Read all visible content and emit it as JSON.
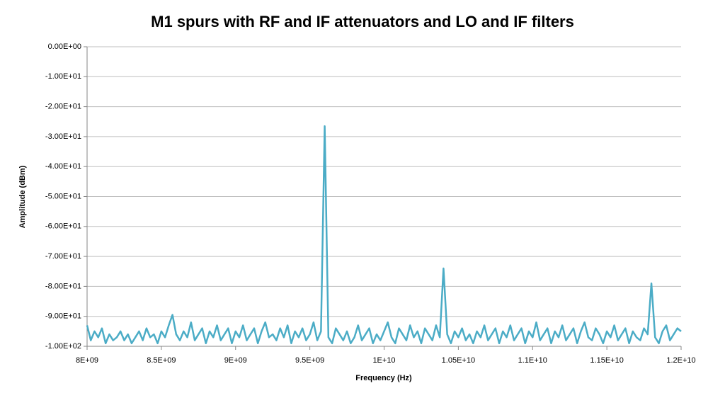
{
  "chart_data": {
    "type": "line",
    "title": "M1 spurs with RF and IF attenuators and LO and IF filters",
    "x_label": "Frequency (Hz)",
    "y_label": "Amplitude (dBm)",
    "grid": true,
    "xlim": [
      8000000000.0,
      12000000000.0
    ],
    "ylim": [
      -100,
      0
    ],
    "xticks": [
      {
        "value": 8000000000.0,
        "label": "8E+09"
      },
      {
        "value": 8500000000.0,
        "label": "8.5E+09"
      },
      {
        "value": 9000000000.0,
        "label": "9E+09"
      },
      {
        "value": 9500000000.0,
        "label": "9.5E+09"
      },
      {
        "value": 10000000000.0,
        "label": "1E+10"
      },
      {
        "value": 10500000000.0,
        "label": "1.05E+10"
      },
      {
        "value": 11000000000.0,
        "label": "1.1E+10"
      },
      {
        "value": 11500000000.0,
        "label": "1.15E+10"
      },
      {
        "value": 12000000000.0,
        "label": "1.2E+10"
      }
    ],
    "yticks": [
      {
        "value": 0,
        "label": "0.00E+00"
      },
      {
        "value": -10,
        "label": "-1.00E+01"
      },
      {
        "value": -20,
        "label": "-2.00E+01"
      },
      {
        "value": -30,
        "label": "-3.00E+01"
      },
      {
        "value": -40,
        "label": "-4.00E+01"
      },
      {
        "value": -50,
        "label": "-5.00E+01"
      },
      {
        "value": -60,
        "label": "-6.00E+01"
      },
      {
        "value": -70,
        "label": "-7.00E+01"
      },
      {
        "value": -80,
        "label": "-8.00E+01"
      },
      {
        "value": -90,
        "label": "-9.00E+01"
      },
      {
        "value": -100,
        "label": "-1.00E+02"
      }
    ],
    "x": [
      8000000000.0,
      8025000000.0,
      8050000000.0,
      8075000000.0,
      8100000000.0,
      8125000000.0,
      8150000000.0,
      8175000000.0,
      8200000000.0,
      8225000000.0,
      8250000000.0,
      8275000000.0,
      8300000000.0,
      8325000000.0,
      8350000000.0,
      8375000000.0,
      8400000000.0,
      8425000000.0,
      8450000000.0,
      8475000000.0,
      8500000000.0,
      8525000000.0,
      8550000000.0,
      8575000000.0,
      8600000000.0,
      8625000000.0,
      8650000000.0,
      8675000000.0,
      8700000000.0,
      8725000000.0,
      8750000000.0,
      8775000000.0,
      8800000000.0,
      8825000000.0,
      8850000000.0,
      8875000000.0,
      8900000000.0,
      8925000000.0,
      8950000000.0,
      8975000000.0,
      9000000000.0,
      9025000000.0,
      9050000000.0,
      9075000000.0,
      9100000000.0,
      9125000000.0,
      9150000000.0,
      9175000000.0,
      9200000000.0,
      9225000000.0,
      9250000000.0,
      9275000000.0,
      9300000000.0,
      9325000000.0,
      9350000000.0,
      9375000000.0,
      9400000000.0,
      9425000000.0,
      9450000000.0,
      9475000000.0,
      9500000000.0,
      9525000000.0,
      9550000000.0,
      9575000000.0,
      9600000000.0,
      9625000000.0,
      9650000000.0,
      9675000000.0,
      9700000000.0,
      9725000000.0,
      9750000000.0,
      9775000000.0,
      9800000000.0,
      9825000000.0,
      9850000000.0,
      9875000000.0,
      9900000000.0,
      9925000000.0,
      9950000000.0,
      9975000000.0,
      10000000000.0,
      10025000000.0,
      10050000000.0,
      10075000000.0,
      10100000000.0,
      10125000000.0,
      10150000000.0,
      10175000000.0,
      10200000000.0,
      10225000000.0,
      10250000000.0,
      10275000000.0,
      10300000000.0,
      10325000000.0,
      10350000000.0,
      10375000000.0,
      10400000000.0,
      10425000000.0,
      10450000000.0,
      10475000000.0,
      10500000000.0,
      10525000000.0,
      10550000000.0,
      10575000000.0,
      10600000000.0,
      10625000000.0,
      10650000000.0,
      10675000000.0,
      10700000000.0,
      10725000000.0,
      10750000000.0,
      10775000000.0,
      10800000000.0,
      10825000000.0,
      10850000000.0,
      10875000000.0,
      10900000000.0,
      10925000000.0,
      10950000000.0,
      10975000000.0,
      11000000000.0,
      11025000000.0,
      11050000000.0,
      11075000000.0,
      11100000000.0,
      11125000000.0,
      11150000000.0,
      11175000000.0,
      11200000000.0,
      11225000000.0,
      11250000000.0,
      11275000000.0,
      11300000000.0,
      11325000000.0,
      11350000000.0,
      11375000000.0,
      11400000000.0,
      11425000000.0,
      11450000000.0,
      11475000000.0,
      11500000000.0,
      11525000000.0,
      11550000000.0,
      11575000000.0,
      11600000000.0,
      11625000000.0,
      11650000000.0,
      11675000000.0,
      11700000000.0,
      11725000000.0,
      11750000000.0,
      11775000000.0,
      11800000000.0,
      11825000000.0,
      11850000000.0,
      11875000000.0,
      11900000000.0,
      11925000000.0,
      11950000000.0,
      11975000000.0,
      12000000000.0
    ],
    "series": [
      {
        "color": "#4bacc6",
        "values": [
          -93,
          -98,
          -95,
          -97,
          -94,
          -99,
          -96,
          -98,
          -97,
          -95,
          -98,
          -96,
          -99,
          -97,
          -95,
          -98,
          -94,
          -97,
          -96,
          -99,
          -95,
          -97,
          -93,
          -89.5,
          -96,
          -98,
          -95,
          -97,
          -92,
          -98,
          -96,
          -94,
          -99,
          -95,
          -97,
          -93,
          -98,
          -96,
          -94,
          -99,
          -95,
          -97,
          -93,
          -98,
          -96,
          -94,
          -99,
          -95,
          -92,
          -97,
          -96,
          -98,
          -94,
          -97,
          -93,
          -99,
          -95,
          -97,
          -94,
          -98,
          -96,
          -92,
          -98,
          -95,
          -26.5,
          -97,
          -99,
          -94,
          -96,
          -98,
          -95,
          -99,
          -97,
          -93,
          -98,
          -96,
          -94,
          -99,
          -96,
          -98,
          -95,
          -92,
          -97,
          -99,
          -94,
          -96,
          -98,
          -93,
          -97,
          -95,
          -99,
          -94,
          -96,
          -98,
          -93,
          -97,
          -74,
          -96,
          -99,
          -95,
          -97,
          -94,
          -98,
          -96,
          -99,
          -95,
          -97,
          -93,
          -98,
          -96,
          -94,
          -99,
          -95,
          -97,
          -93,
          -98,
          -96,
          -94,
          -99,
          -95,
          -97,
          -92,
          -98,
          -96,
          -94,
          -99,
          -95,
          -97,
          -93,
          -98,
          -96,
          -94,
          -99,
          -95,
          -92,
          -97,
          -98,
          -94,
          -96,
          -99,
          -95,
          -97,
          -93,
          -98,
          -96,
          -94,
          -99,
          -95,
          -97,
          -98,
          -94,
          -96,
          -79,
          -97,
          -99,
          -95,
          -93,
          -98,
          -96,
          -94,
          -95
        ]
      }
    ]
  }
}
